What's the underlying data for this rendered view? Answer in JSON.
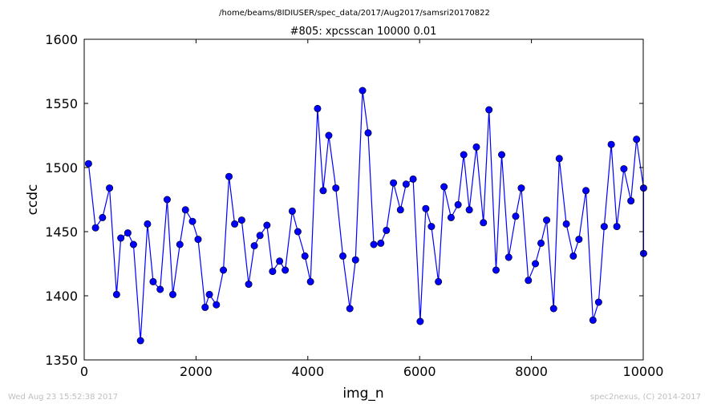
{
  "figure": {
    "suptitle": "/home/beams/8IDIUSER/spec_data/2017/Aug2017/samsri20170822",
    "footer_left": "Wed Aug 23 15:52:38 2017",
    "footer_right": "spec2nexus, (C) 2014-2017"
  },
  "chart_data": {
    "type": "line",
    "title": "#805: xpcsscan 10000 0.01",
    "xlabel": "img_n",
    "ylabel": "ccdc",
    "xlim": [
      0,
      10000
    ],
    "ylim": [
      1350,
      1600
    ],
    "xticks": [
      "0",
      "2000",
      "4000",
      "6000",
      "8000",
      "10000"
    ],
    "yticks": [
      "1350",
      "1400",
      "1450",
      "1500",
      "1550",
      "1600"
    ],
    "grid": false,
    "legend": "none",
    "line_color": "#0000ff",
    "marker_color": "#0000ff",
    "marker": "circle",
    "x": [
      77,
      202,
      328,
      453,
      579,
      655,
      780,
      881,
      1007,
      1132,
      1233,
      1359,
      1484,
      1585,
      1711,
      1811,
      1937,
      2037,
      2163,
      2239,
      2364,
      2490,
      2590,
      2691,
      2817,
      2942,
      3043,
      3144,
      3269,
      3370,
      3495,
      3596,
      3722,
      3822,
      3948,
      4048,
      4174,
      4275,
      4375,
      4501,
      4627,
      4752,
      4853,
      4979,
      5079,
      5180,
      5305,
      5406,
      5532,
      5657,
      5758,
      5884,
      6010,
      6110,
      6211,
      6336,
      6437,
      6563,
      6688,
      6789,
      6889,
      7015,
      7141,
      7241,
      7367,
      7468,
      7593,
      7719,
      7819,
      7945,
      8071,
      8171,
      8272,
      8397,
      8498,
      8624,
      8749,
      8850,
      8975,
      9101,
      9202,
      9302,
      9428,
      9528,
      9654,
      9780,
      9880,
      10006,
      10006
    ],
    "y": [
      1503,
      1453,
      1461,
      1484,
      1401,
      1445,
      1449,
      1440,
      1365,
      1456,
      1411,
      1405,
      1475,
      1401,
      1440,
      1467,
      1458,
      1444,
      1391,
      1401,
      1393,
      1420,
      1493,
      1456,
      1459,
      1409,
      1439,
      1447,
      1455,
      1419,
      1427,
      1420,
      1466,
      1450,
      1431,
      1411,
      1546,
      1482,
      1525,
      1484,
      1431,
      1390,
      1428,
      1560,
      1527,
      1440,
      1441,
      1451,
      1488,
      1467,
      1487,
      1491,
      1380,
      1468,
      1454,
      1411,
      1485,
      1461,
      1471,
      1510,
      1467,
      1516,
      1457,
      1545,
      1420,
      1510,
      1430,
      1462,
      1484,
      1412,
      1425,
      1441,
      1459,
      1390,
      1507,
      1456,
      1431,
      1444,
      1482,
      1381,
      1395,
      1454,
      1518,
      1454,
      1499,
      1474,
      1522,
      1484,
      1433
    ]
  }
}
